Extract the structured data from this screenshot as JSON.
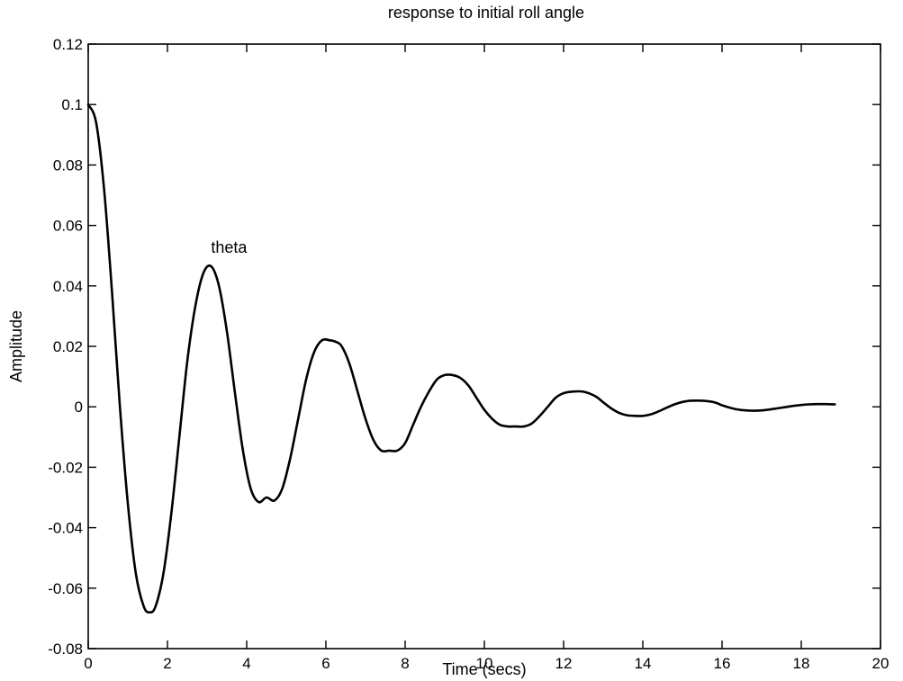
{
  "chart_data": {
    "type": "line",
    "title": "response to initial roll angle",
    "xlabel": "Time (secs)",
    "ylabel": "Amplitude",
    "xlim": [
      0,
      20
    ],
    "ylim": [
      -0.08,
      0.12
    ],
    "xticks": [
      0,
      2,
      4,
      6,
      8,
      10,
      12,
      14,
      16,
      18,
      20
    ],
    "xtick_labels": [
      "0",
      "2",
      "4",
      "6",
      "8",
      "10",
      "12",
      "14",
      "16",
      "18",
      "20"
    ],
    "yticks": [
      -0.08,
      -0.06,
      -0.04,
      -0.02,
      0,
      0.02,
      0.04,
      0.06,
      0.08,
      0.1,
      0.12
    ],
    "ytick_labels": [
      "-0.08",
      "-0.06",
      "-0.04",
      "-0.02",
      "0",
      "0.02",
      "0.04",
      "0.06",
      "0.08",
      "0.1",
      "0.12"
    ],
    "grid": false,
    "line_color": "#000000",
    "annotations": [
      {
        "text": "theta",
        "x": 3.1,
        "y": 0.051
      }
    ],
    "series": [
      {
        "x": [
          0,
          0.2,
          0.4,
          0.6,
          0.8,
          1.0,
          1.2,
          1.4,
          1.55,
          1.7,
          1.9,
          2.1,
          2.3,
          2.5,
          2.7,
          2.9,
          3.1,
          3.3,
          3.5,
          3.7,
          3.9,
          4.1,
          4.3,
          4.5,
          4.7,
          4.9,
          5.1,
          5.3,
          5.5,
          5.7,
          5.9,
          6.1,
          6.25,
          6.4,
          6.6,
          6.8,
          7.0,
          7.2,
          7.4,
          7.6,
          7.8,
          8.0,
          8.2,
          8.4,
          8.6,
          8.8,
          9.0,
          9.2,
          9.4,
          9.6,
          9.8,
          10.0,
          10.2,
          10.4,
          10.6,
          10.8,
          11.0,
          11.2,
          11.4,
          11.6,
          11.8,
          12.0,
          12.2,
          12.5,
          12.8,
          13.0,
          13.2,
          13.4,
          13.6,
          13.8,
          14.0,
          14.2,
          14.4,
          14.6,
          14.8,
          15.0,
          15.2,
          15.5,
          15.8,
          16.0,
          16.2,
          16.4,
          16.6,
          16.8,
          17.0,
          17.2,
          17.4,
          17.6,
          17.8,
          18.0,
          18.2,
          18.4,
          18.6,
          18.85
        ],
        "y": [
          0.1,
          0.094,
          0.072,
          0.038,
          0.0,
          -0.032,
          -0.055,
          -0.066,
          -0.068,
          -0.066,
          -0.055,
          -0.035,
          -0.01,
          0.015,
          0.033,
          0.044,
          0.0465,
          0.04,
          0.025,
          0.005,
          -0.014,
          -0.027,
          -0.0315,
          -0.03,
          -0.031,
          -0.027,
          -0.017,
          -0.004,
          0.009,
          0.018,
          0.022,
          0.022,
          0.0215,
          0.02,
          0.014,
          0.005,
          -0.004,
          -0.011,
          -0.0145,
          -0.0145,
          -0.0145,
          -0.012,
          -0.006,
          0.0,
          0.005,
          0.009,
          0.0105,
          0.0105,
          0.0095,
          0.007,
          0.003,
          -0.001,
          -0.004,
          -0.006,
          -0.0065,
          -0.0065,
          -0.0065,
          -0.0055,
          -0.003,
          0.0,
          0.003,
          0.0045,
          0.005,
          0.005,
          0.0035,
          0.0015,
          -0.0005,
          -0.002,
          -0.0028,
          -0.003,
          -0.003,
          -0.0025,
          -0.0015,
          -0.0003,
          0.0008,
          0.0016,
          0.002,
          0.002,
          0.0015,
          0.0005,
          -0.0003,
          -0.0009,
          -0.0012,
          -0.0013,
          -0.0012,
          -0.0009,
          -0.0005,
          -0.0001,
          0.0003,
          0.0006,
          0.0008,
          0.0009,
          0.0009,
          0.0008
        ]
      }
    ]
  }
}
